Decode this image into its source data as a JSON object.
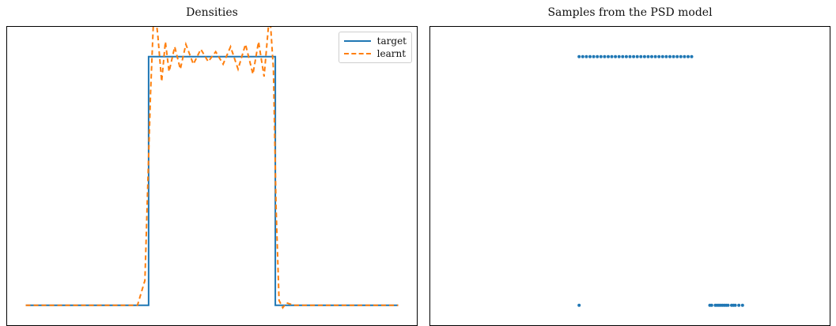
{
  "chart_data": [
    {
      "type": "line",
      "title": "Densities",
      "xlabel": "",
      "ylabel": "",
      "xlim": [
        -0.05,
        1.05
      ],
      "ylim": [
        -0.08,
        1.12
      ],
      "legend": "top-right",
      "grid": false,
      "series": [
        {
          "name": "target",
          "color": "#1f77b4",
          "style": "solid",
          "x": [
            0,
            0.33,
            0.33,
            0.67,
            0.67,
            1.0
          ],
          "y": [
            0,
            0,
            1,
            1,
            0,
            0
          ]
        },
        {
          "name": "learnt",
          "color": "#ff7f0e",
          "style": "dashed",
          "x": [
            0,
            0.3,
            0.32,
            0.335,
            0.345,
            0.355,
            0.365,
            0.375,
            0.385,
            0.4,
            0.415,
            0.43,
            0.45,
            0.47,
            0.49,
            0.51,
            0.53,
            0.55,
            0.57,
            0.59,
            0.61,
            0.625,
            0.64,
            0.655,
            0.665,
            0.672,
            0.68,
            0.69,
            0.7,
            0.72,
            1.0
          ],
          "y": [
            0,
            0,
            0.1,
            0.85,
            1.22,
            1.08,
            0.9,
            1.06,
            0.94,
            1.04,
            0.95,
            1.05,
            0.97,
            1.03,
            0.98,
            1.02,
            0.97,
            1.04,
            0.95,
            1.05,
            0.93,
            1.06,
            0.92,
            1.18,
            0.95,
            0.4,
            0.02,
            -0.01,
            0.01,
            0,
            0
          ]
        }
      ]
    },
    {
      "type": "scatter",
      "title": "Samples from the PSD model",
      "xlabel": "",
      "ylabel": "",
      "xlim": [
        -0.05,
        1.05
      ],
      "ylim": [
        -0.08,
        1.12
      ],
      "grid": false,
      "series": [
        {
          "color": "#1f77b4",
          "x": [
            0.36,
            0.37,
            0.38,
            0.39,
            0.4,
            0.41,
            0.42,
            0.43,
            0.44,
            0.45,
            0.46,
            0.47,
            0.48,
            0.49,
            0.5,
            0.51,
            0.52,
            0.53,
            0.54,
            0.55,
            0.56,
            0.57,
            0.58,
            0.59,
            0.6,
            0.61,
            0.62,
            0.63,
            0.64,
            0.65,
            0.66,
            0.67,
            0.72
          ],
          "y": [
            1,
            1,
            1,
            1,
            1,
            1,
            1,
            1,
            1,
            1,
            1,
            1,
            1,
            1,
            1,
            1,
            1,
            1,
            1,
            1,
            1,
            1,
            1,
            1,
            1,
            1,
            1,
            1,
            1,
            1,
            1,
            1,
            0
          ]
        },
        {
          "color": "#1f77b4",
          "x": [
            0.36,
            0.725,
            0.735,
            0.74,
            0.745,
            0.75,
            0.755,
            0.76,
            0.765,
            0.77,
            0.78,
            0.785,
            0.79,
            0.8,
            0.81
          ],
          "y": [
            0,
            0,
            0,
            0,
            0,
            0,
            0,
            0,
            0,
            0,
            0,
            0,
            0,
            0,
            0
          ]
        }
      ]
    }
  ]
}
